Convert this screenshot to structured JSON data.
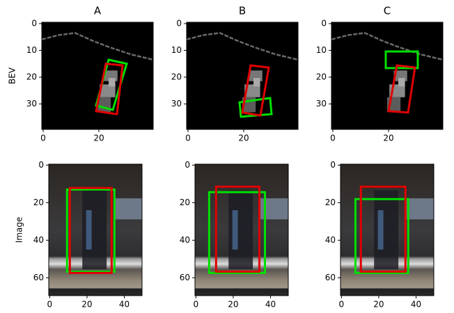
{
  "chart_data": [
    {
      "type": "image",
      "title": "A",
      "ylabel": "BEV",
      "xlim": [
        -0.5,
        39.5
      ],
      "ylim": [
        39.5,
        -0.5
      ],
      "xticks": [
        0,
        20
      ],
      "yticks": [
        0,
        10,
        20,
        30
      ],
      "boxes": [
        {
          "color": "#00e000",
          "points": [
            [
              23.5,
              13.5
            ],
            [
              30,
              15
            ],
            [
              25,
              32.2
            ],
            [
              19,
              30.6
            ]
          ]
        },
        {
          "color": "#e00000",
          "points": [
            [
              22.5,
              15
            ],
            [
              28.5,
              15.6
            ],
            [
              26.5,
              33.8
            ],
            [
              19,
              32.7
            ]
          ]
        }
      ]
    },
    {
      "type": "image",
      "title": "B",
      "xlim": [
        -0.5,
        39.5
      ],
      "ylim": [
        39.5,
        -0.5
      ],
      "xticks": [
        0,
        20
      ],
      "yticks": [
        0,
        10,
        20,
        30
      ],
      "boxes": [
        {
          "color": "#00e000",
          "points": [
            [
              18.5,
              29.4
            ],
            [
              29.5,
              27.8
            ],
            [
              30,
              33.8
            ],
            [
              19,
              34.8
            ]
          ]
        },
        {
          "color": "#e00000",
          "points": [
            [
              22.5,
              15.6
            ],
            [
              29,
              16.4
            ],
            [
              26,
              34.3
            ],
            [
              19.5,
              33.2
            ]
          ]
        }
      ]
    },
    {
      "type": "image",
      "title": "C",
      "xlim": [
        -0.5,
        39.5
      ],
      "ylim": [
        39.5,
        -0.5
      ],
      "xticks": [
        0,
        20
      ],
      "yticks": [
        0,
        10,
        20,
        30
      ],
      "boxes": [
        {
          "color": "#00e000",
          "points": [
            [
              19,
              10.4
            ],
            [
              30.5,
              10.4
            ],
            [
              30.5,
              16.6
            ],
            [
              19,
              16.6
            ]
          ]
        },
        {
          "color": "#e00000",
          "points": [
            [
              23,
              15.6
            ],
            [
              29.5,
              16.4
            ],
            [
              27,
              33.2
            ],
            [
              20,
              32.7
            ]
          ]
        }
      ]
    },
    {
      "type": "image",
      "ylabel": "Image",
      "xlim": [
        -0.5,
        49.5
      ],
      "ylim": [
        69.5,
        -0.5
      ],
      "xticks": [
        0,
        20,
        40
      ],
      "yticks": [
        0,
        20,
        40,
        60
      ],
      "boxes": [
        {
          "color": "#00e000",
          "points": [
            [
              9.3,
              13
            ],
            [
              34.7,
              13
            ],
            [
              34.7,
              56.7
            ],
            [
              9.3,
              56.7
            ]
          ]
        },
        {
          "color": "#e00000",
          "points": [
            [
              10.8,
              12.2
            ],
            [
              33.2,
              12.2
            ],
            [
              33.2,
              57.4
            ],
            [
              10.8,
              57.4
            ]
          ]
        }
      ]
    },
    {
      "type": "image",
      "xlim": [
        -0.5,
        49.5
      ],
      "ylim": [
        69.5,
        -0.5
      ],
      "xticks": [
        0,
        20,
        40
      ],
      "yticks": [
        0,
        20,
        40,
        60
      ],
      "boxes": [
        {
          "color": "#00e000",
          "points": [
            [
              7.1,
              14.4
            ],
            [
              37,
              14.4
            ],
            [
              37,
              57.4
            ],
            [
              7.1,
              57.4
            ]
          ]
        },
        {
          "color": "#e00000",
          "points": [
            [
              10.8,
              11.5
            ],
            [
              34,
              11.5
            ],
            [
              34,
              56.7
            ],
            [
              10.8,
              56.7
            ]
          ]
        }
      ]
    },
    {
      "type": "image",
      "xlim": [
        -0.5,
        49.5
      ],
      "ylim": [
        69.5,
        -0.5
      ],
      "xticks": [
        0,
        20,
        40
      ],
      "yticks": [
        0,
        20,
        40,
        60
      ],
      "boxes": [
        {
          "color": "#00e000",
          "points": [
            [
              7.5,
              18.1
            ],
            [
              35.8,
              18.1
            ],
            [
              35.8,
              57.4
            ],
            [
              7.5,
              57.4
            ]
          ]
        },
        {
          "color": "#e00000",
          "points": [
            [
              10.4,
              11.5
            ],
            [
              34.3,
              11.5
            ],
            [
              34.3,
              56.7
            ],
            [
              10.4,
              56.7
            ]
          ]
        }
      ]
    }
  ]
}
